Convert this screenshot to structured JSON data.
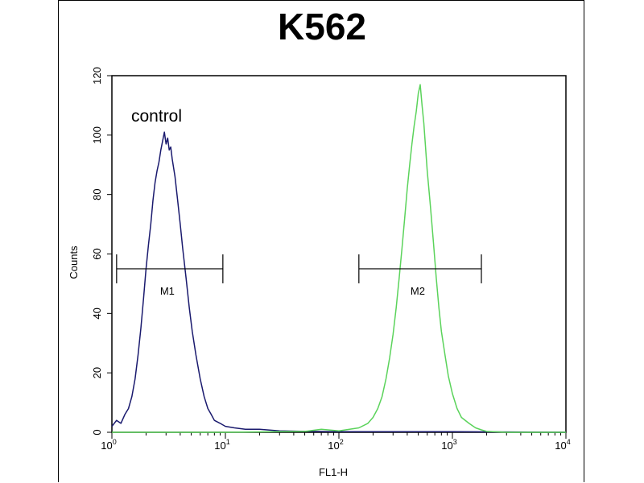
{
  "chart_data": {
    "type": "line",
    "title": "K562",
    "xlabel": "FL1-H",
    "ylabel": "Counts",
    "xscale": "log",
    "xlim": [
      1,
      10000
    ],
    "ylim": [
      0,
      120
    ],
    "x_ticks": [
      {
        "base": "10",
        "exp": "0",
        "value": 1
      },
      {
        "base": "10",
        "exp": "1",
        "value": 10
      },
      {
        "base": "10",
        "exp": "2",
        "value": 100
      },
      {
        "base": "10",
        "exp": "3",
        "value": 1000
      },
      {
        "base": "10",
        "exp": "4",
        "value": 10000
      }
    ],
    "y_ticks": [
      "0",
      "20",
      "40",
      "60",
      "80",
      "100",
      "120"
    ],
    "grid": false,
    "annotations": {
      "control_text": "control",
      "markers": [
        {
          "label": "M1",
          "x_start": 1.1,
          "x_end": 9.5,
          "y": 55
        },
        {
          "label": "M2",
          "x_start": 150,
          "x_end": 1800,
          "y": 55
        }
      ]
    },
    "series": [
      {
        "color": "#1a1a6e",
        "points": [
          [
            1.0,
            2
          ],
          [
            1.1,
            4
          ],
          [
            1.2,
            3
          ],
          [
            1.3,
            6
          ],
          [
            1.4,
            8
          ],
          [
            1.5,
            12
          ],
          [
            1.6,
            18
          ],
          [
            1.7,
            26
          ],
          [
            1.8,
            35
          ],
          [
            1.9,
            45
          ],
          [
            2.0,
            55
          ],
          [
            2.1,
            63
          ],
          [
            2.2,
            70
          ],
          [
            2.3,
            78
          ],
          [
            2.4,
            84
          ],
          [
            2.5,
            88
          ],
          [
            2.6,
            91
          ],
          [
            2.7,
            95
          ],
          [
            2.8,
            98
          ],
          [
            2.9,
            101
          ],
          [
            3.0,
            97
          ],
          [
            3.1,
            99
          ],
          [
            3.2,
            95
          ],
          [
            3.3,
            96
          ],
          [
            3.4,
            92
          ],
          [
            3.6,
            86
          ],
          [
            3.8,
            78
          ],
          [
            4.0,
            70
          ],
          [
            4.2,
            62
          ],
          [
            4.5,
            52
          ],
          [
            4.8,
            42
          ],
          [
            5.1,
            34
          ],
          [
            5.5,
            26
          ],
          [
            6.0,
            18
          ],
          [
            6.5,
            12
          ],
          [
            7.0,
            8
          ],
          [
            7.5,
            6
          ],
          [
            8.0,
            4
          ],
          [
            9.0,
            3
          ],
          [
            10,
            2
          ],
          [
            12,
            1.5
          ],
          [
            15,
            1
          ],
          [
            20,
            1
          ],
          [
            30,
            0.5
          ],
          [
            50,
            0.3
          ],
          [
            100,
            0.2
          ],
          [
            300,
            0.2
          ],
          [
            1000,
            0.2
          ],
          [
            10000,
            0
          ]
        ]
      },
      {
        "color": "#5bd35b",
        "points": [
          [
            1.0,
            0
          ],
          [
            10,
            0
          ],
          [
            50,
            0.3
          ],
          [
            70,
            1
          ],
          [
            100,
            0.5
          ],
          [
            150,
            1.5
          ],
          [
            180,
            3
          ],
          [
            200,
            5
          ],
          [
            220,
            8
          ],
          [
            240,
            12
          ],
          [
            260,
            18
          ],
          [
            280,
            25
          ],
          [
            300,
            33
          ],
          [
            320,
            42
          ],
          [
            340,
            52
          ],
          [
            360,
            62
          ],
          [
            380,
            72
          ],
          [
            400,
            82
          ],
          [
            420,
            90
          ],
          [
            440,
            97
          ],
          [
            460,
            103
          ],
          [
            480,
            108
          ],
          [
            500,
            114
          ],
          [
            520,
            117
          ],
          [
            540,
            110
          ],
          [
            560,
            104
          ],
          [
            580,
            96
          ],
          [
            600,
            88
          ],
          [
            640,
            76
          ],
          [
            680,
            64
          ],
          [
            720,
            52
          ],
          [
            760,
            42
          ],
          [
            800,
            34
          ],
          [
            860,
            26
          ],
          [
            920,
            19
          ],
          [
            1000,
            13
          ],
          [
            1100,
            8
          ],
          [
            1200,
            5
          ],
          [
            1400,
            3
          ],
          [
            1600,
            1.5
          ],
          [
            1800,
            0.8
          ],
          [
            2000,
            0.3
          ],
          [
            3000,
            0
          ],
          [
            10000,
            0
          ]
        ]
      }
    ]
  }
}
